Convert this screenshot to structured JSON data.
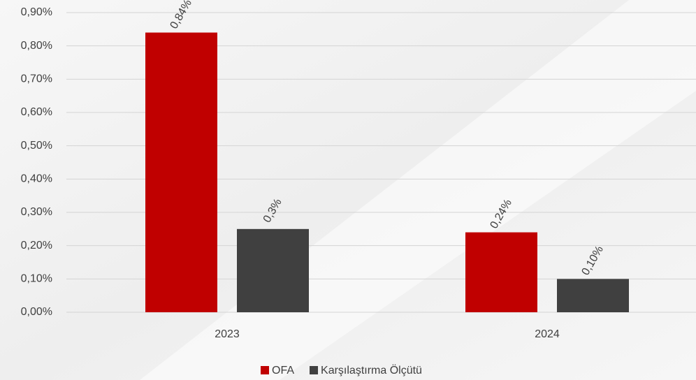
{
  "chart_data": {
    "type": "bar",
    "categories": [
      "2023",
      "2024"
    ],
    "series": [
      {
        "name": "OFA",
        "color": "#c00000",
        "values": [
          0.84,
          0.24
        ],
        "value_labels": [
          "0,84%",
          "0,24%"
        ]
      },
      {
        "name": "Karşılaştırma Ölçütü",
        "color": "#404040",
        "values": [
          0.25,
          0.1
        ],
        "value_labels": [
          "0,3%",
          "0,10%"
        ]
      }
    ],
    "ylim": [
      0,
      0.9
    ],
    "yticks": [
      {
        "value": 0,
        "label": "0,00%"
      },
      {
        "value": 0.1,
        "label": "0,10%"
      },
      {
        "value": 0.2,
        "label": "0,20%"
      },
      {
        "value": 0.3,
        "label": "0,30%"
      },
      {
        "value": 0.4,
        "label": "0,40%"
      },
      {
        "value": 0.5,
        "label": "0,50%"
      },
      {
        "value": 0.6,
        "label": "0,60%"
      },
      {
        "value": 0.7,
        "label": "0,70%"
      },
      {
        "value": 0.8,
        "label": "0,80%"
      },
      {
        "value": 0.9,
        "label": "0,90%"
      }
    ],
    "grid": true,
    "legend": "bottom"
  }
}
